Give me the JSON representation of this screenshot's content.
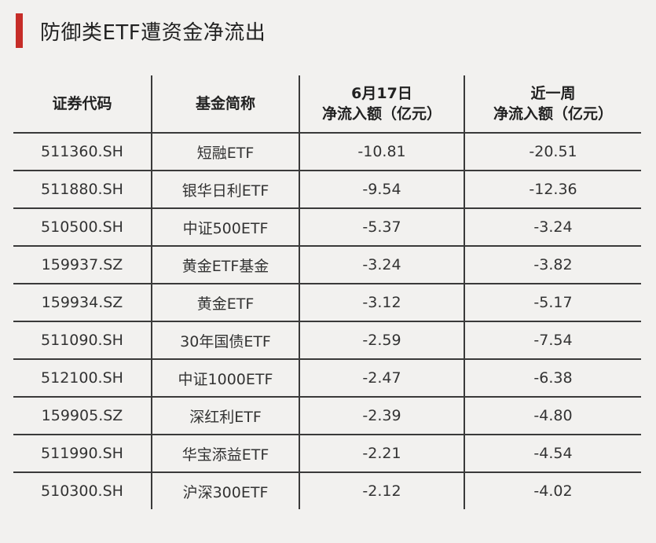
{
  "title": "防御类ETF遭资金净流出",
  "colors": {
    "accent": "#c62d28",
    "background": "#f2f1ef",
    "grid": "#3a3a3a"
  },
  "table": {
    "headers": {
      "code": "证券代码",
      "name": "基金简称",
      "day_line1": "6月17日",
      "day_line2": "净流入额（亿元）",
      "week_line1": "近一周",
      "week_line2": "净流入额（亿元）"
    },
    "rows": [
      {
        "code": "511360.SH",
        "name": "短融ETF",
        "day": "-10.81",
        "week": "-20.51"
      },
      {
        "code": "511880.SH",
        "name": "银华日利ETF",
        "day": "-9.54",
        "week": "-12.36"
      },
      {
        "code": "510500.SH",
        "name": "中证500ETF",
        "day": "-5.37",
        "week": "-3.24"
      },
      {
        "code": "159937.SZ",
        "name": "黄金ETF基金",
        "day": "-3.24",
        "week": "-3.82"
      },
      {
        "code": "159934.SZ",
        "name": "黄金ETF",
        "day": "-3.12",
        "week": "-5.17"
      },
      {
        "code": "511090.SH",
        "name": "30年国债ETF",
        "day": "-2.59",
        "week": "-7.54"
      },
      {
        "code": "512100.SH",
        "name": "中证1000ETF",
        "day": "-2.47",
        "week": "-6.38"
      },
      {
        "code": "159905.SZ",
        "name": "深红利ETF",
        "day": "-2.39",
        "week": "-4.80"
      },
      {
        "code": "511990.SH",
        "name": "华宝添益ETF",
        "day": "-2.21",
        "week": "-4.54"
      },
      {
        "code": "510300.SH",
        "name": "沪深300ETF",
        "day": "-2.12",
        "week": "-4.02"
      }
    ]
  }
}
